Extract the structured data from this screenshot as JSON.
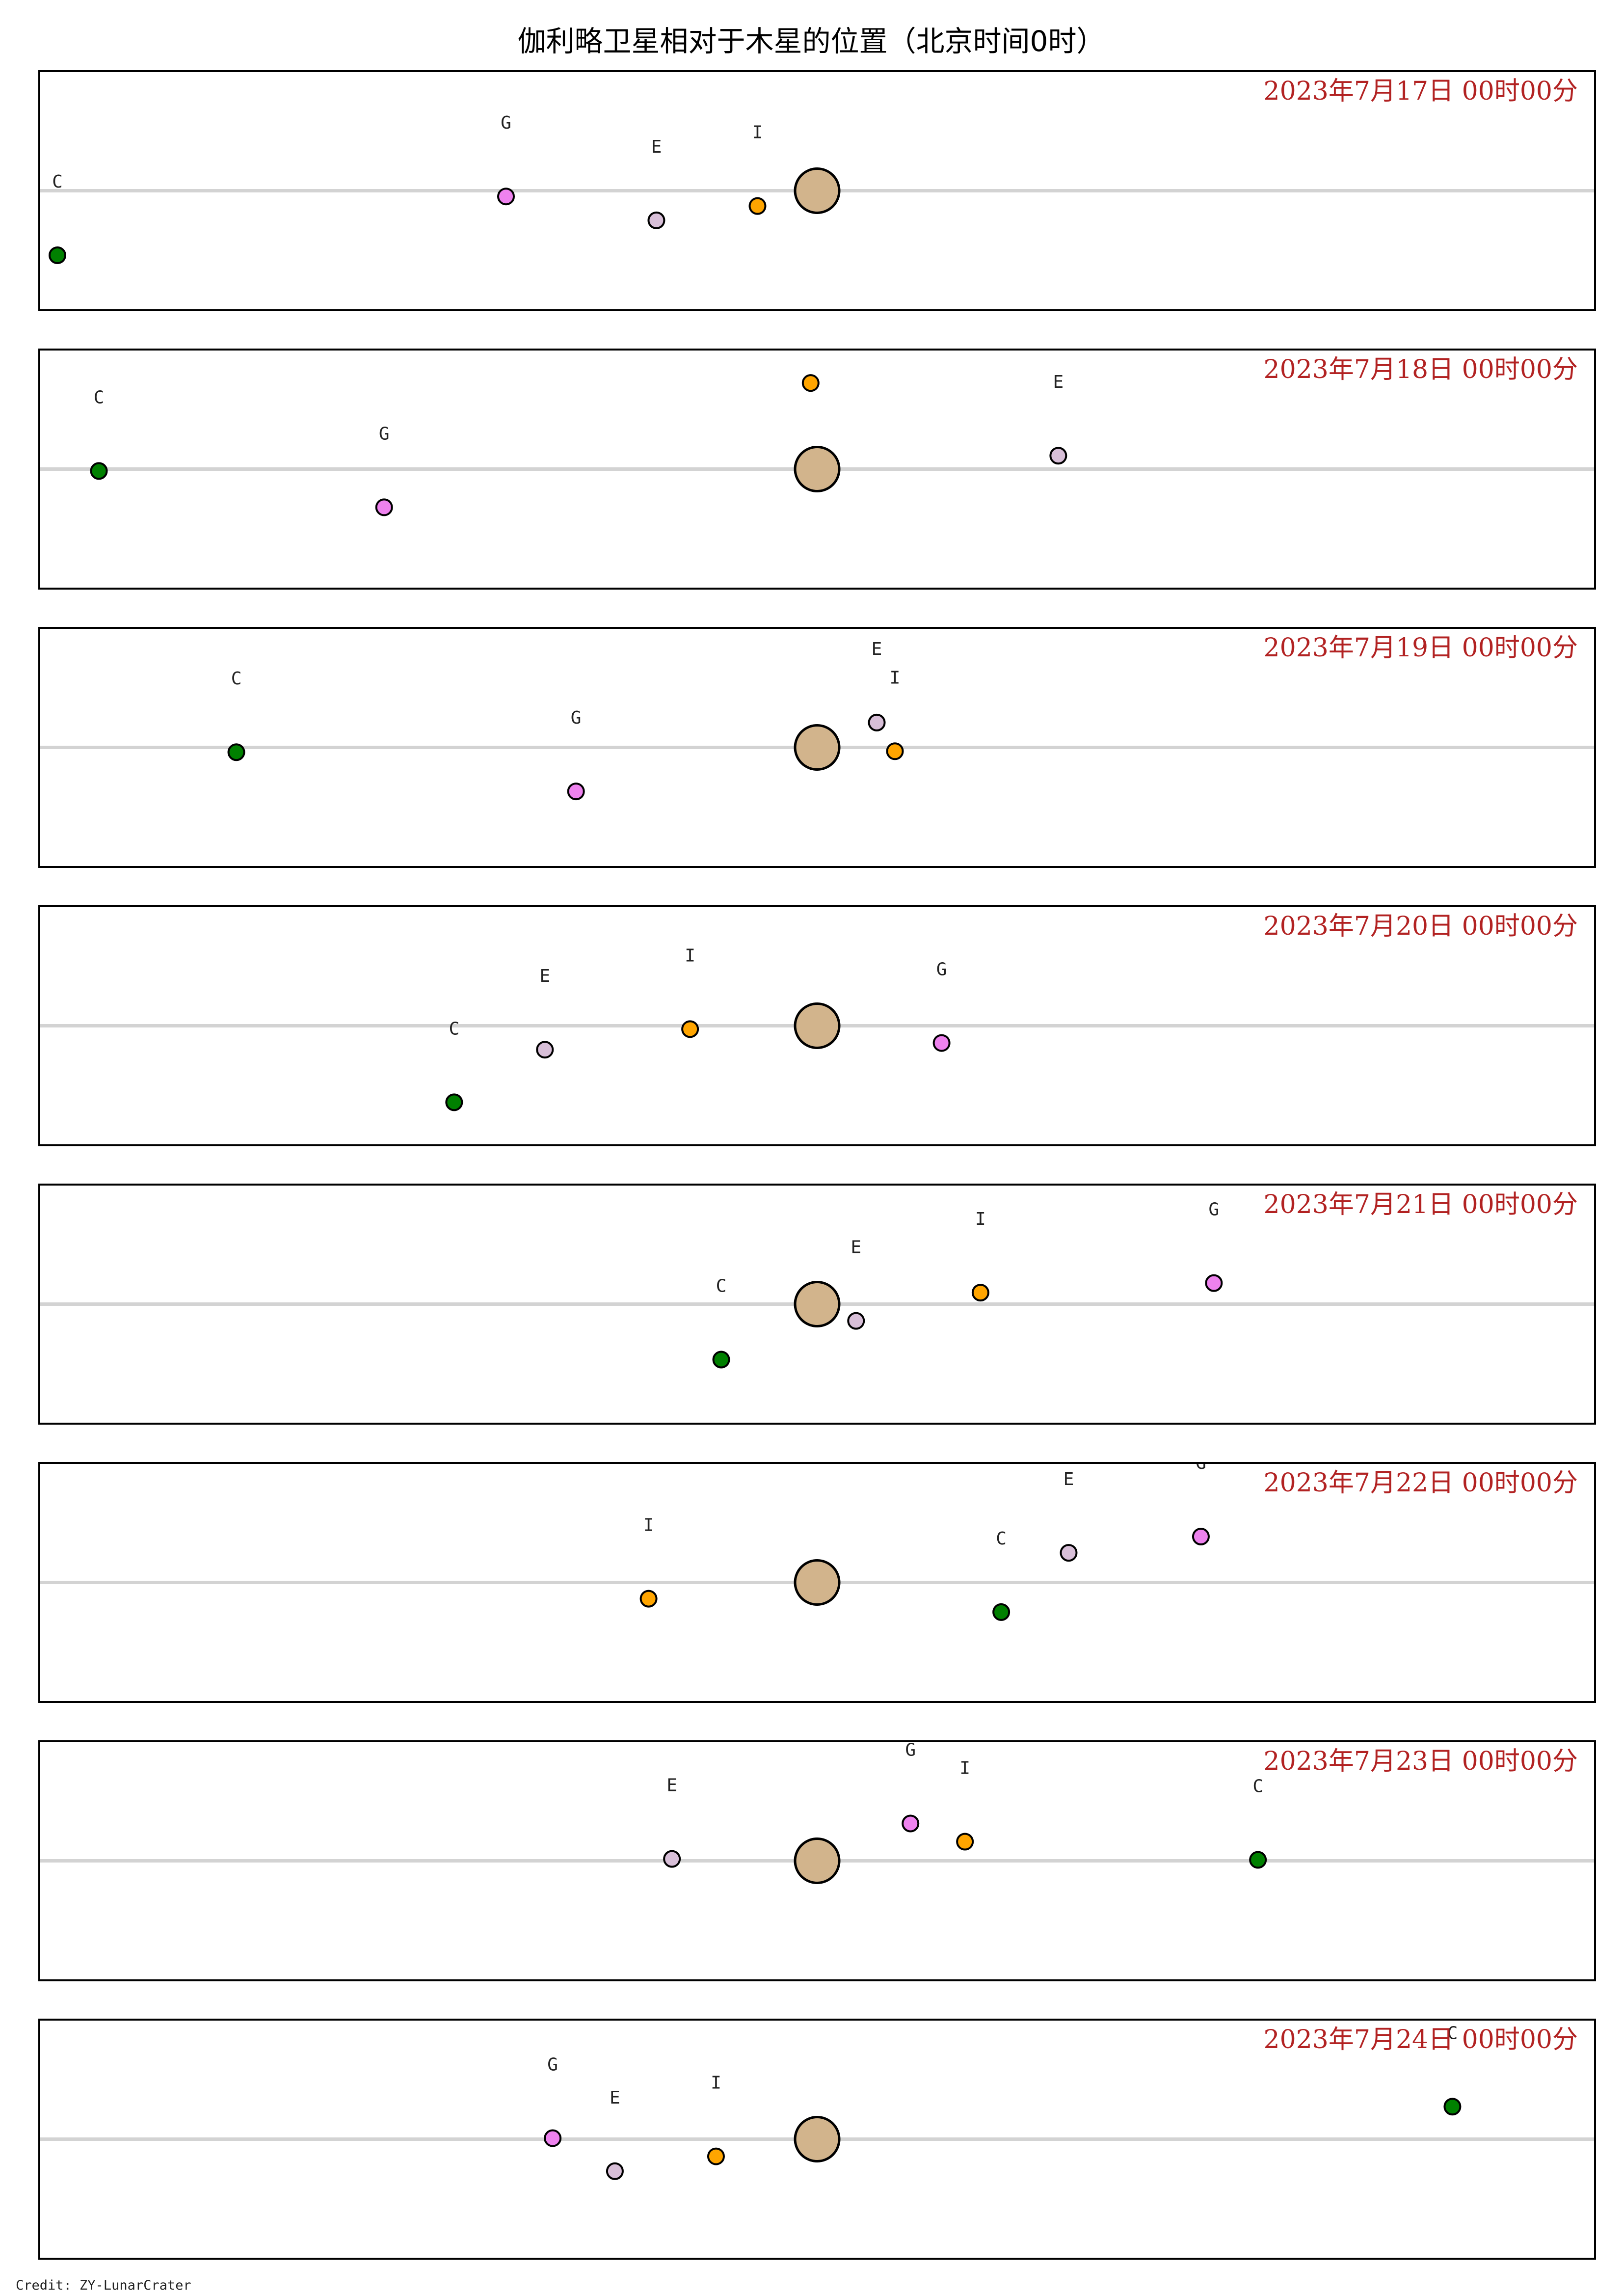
{
  "chart_data": {
    "type": "scatter",
    "title": "伽利略卫星相对于木星的位置（北京时间0时）",
    "credit": "Credit: ZY-LunarCrater",
    "planet": {
      "name": "Jupiter",
      "color": "#d2b48c"
    },
    "moons": [
      {
        "key": "I",
        "color": "#ffa500"
      },
      {
        "key": "E",
        "color": "#d8bfd8"
      },
      {
        "key": "G",
        "color": "#ee82ee"
      },
      {
        "key": "C",
        "color": "#008000"
      }
    ],
    "xlim": [
      -30,
      30
    ],
    "ylim": [
      -2.5,
      2.5
    ],
    "grid": false,
    "panels": [
      {
        "stamp": "2023年7月17日 00时00分",
        "points": [
          {
            "key": "G",
            "x": -12.0,
            "y": -0.12
          },
          {
            "key": "E",
            "x": -6.2,
            "y": -0.62
          },
          {
            "key": "I",
            "x": -2.3,
            "y": -0.32
          },
          {
            "key": "C",
            "x": -29.3,
            "y": -1.35
          }
        ]
      },
      {
        "stamp": "2023年7月18日 00时00分",
        "points": [
          {
            "key": "I",
            "x": -0.25,
            "y": 1.8
          },
          {
            "key": "E",
            "x": 9.3,
            "y": 0.28
          },
          {
            "key": "G",
            "x": -16.7,
            "y": -0.8
          },
          {
            "key": "C",
            "x": -27.7,
            "y": -0.04
          }
        ]
      },
      {
        "stamp": "2023年7月19日 00时00分",
        "points": [
          {
            "key": "E",
            "x": 2.3,
            "y": 0.52
          },
          {
            "key": "I",
            "x": 3.0,
            "y": -0.08
          },
          {
            "key": "G",
            "x": -9.3,
            "y": -0.92
          },
          {
            "key": "C",
            "x": -22.4,
            "y": -0.1
          }
        ]
      },
      {
        "stamp": "2023年7月20日 00时00分",
        "points": [
          {
            "key": "E",
            "x": -10.5,
            "y": -0.5
          },
          {
            "key": "I",
            "x": -4.9,
            "y": -0.07
          },
          {
            "key": "G",
            "x": 4.8,
            "y": -0.36
          },
          {
            "key": "C",
            "x": -14.0,
            "y": -1.6
          }
        ]
      },
      {
        "stamp": "2023年7月21日 00时00分",
        "points": [
          {
            "key": "E",
            "x": 1.5,
            "y": -0.35
          },
          {
            "key": "I",
            "x": 6.3,
            "y": 0.24
          },
          {
            "key": "G",
            "x": 15.3,
            "y": 0.44
          },
          {
            "key": "C",
            "x": -3.7,
            "y": -1.16
          }
        ]
      },
      {
        "stamp": "2023年7月22日 00时00分",
        "points": [
          {
            "key": "I",
            "x": -6.5,
            "y": -0.34
          },
          {
            "key": "E",
            "x": 9.7,
            "y": 0.62
          },
          {
            "key": "G",
            "x": 14.8,
            "y": 0.96
          },
          {
            "key": "C",
            "x": 7.1,
            "y": -0.62
          }
        ]
      },
      {
        "stamp": "2023年7月23日 00时00分",
        "points": [
          {
            "key": "E",
            "x": -5.6,
            "y": 0.04
          },
          {
            "key": "G",
            "x": 3.6,
            "y": 0.78
          },
          {
            "key": "I",
            "x": 5.7,
            "y": 0.4
          },
          {
            "key": "C",
            "x": 17.0,
            "y": 0.02
          }
        ]
      },
      {
        "stamp": "2023年7月24日 00时00分",
        "points": [
          {
            "key": "G",
            "x": -10.2,
            "y": 0.02
          },
          {
            "key": "E",
            "x": -7.8,
            "y": -0.67
          },
          {
            "key": "I",
            "x": -3.9,
            "y": -0.36
          },
          {
            "key": "C",
            "x": 24.5,
            "y": 0.68
          }
        ]
      }
    ]
  }
}
